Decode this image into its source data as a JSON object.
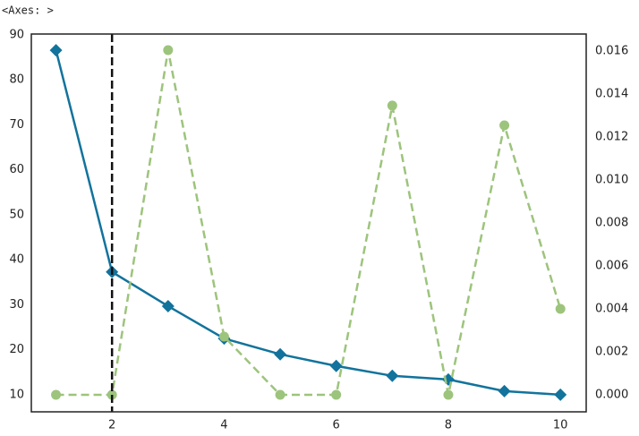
{
  "header": "<Axes: >",
  "chart_data": {
    "type": "line",
    "x": [
      1,
      2,
      3,
      4,
      5,
      6,
      7,
      8,
      9,
      10
    ],
    "series": [
      {
        "color": "#12739c",
        "marker": "diamond",
        "dashed": false,
        "values": [
          86.6,
          37.3,
          29.7,
          22.5,
          19.0,
          16.4,
          14.2,
          13.4,
          10.8,
          10.0
        ]
      },
      {
        "color": "#9dc47c",
        "marker": "circle",
        "dashed": true,
        "axis": "y2",
        "values": [
          0,
          0,
          0.01604,
          0.00271,
          0,
          0,
          0.01346,
          0,
          0.01254,
          0.004
        ]
      }
    ],
    "elbow_x": 2,
    "xlim": [
      0.56,
      10.46
    ],
    "xticks": [
      2,
      4,
      6,
      8,
      10
    ],
    "ylim": [
      6.2,
      90.2
    ],
    "yticks": [
      10,
      20,
      30,
      40,
      50,
      60,
      70,
      80,
      90
    ],
    "y2lim": [
      -0.00079,
      0.01679
    ],
    "y2ticks": [
      {
        "value": 0,
        "label": "0.000"
      },
      {
        "value": 0.002,
        "label": "0.002"
      },
      {
        "value": 0.004,
        "label": "0.004"
      },
      {
        "value": 0.006,
        "label": "0.006"
      },
      {
        "value": 0.008,
        "label": "0.008"
      },
      {
        "value": 0.01,
        "label": "0.010"
      },
      {
        "value": 0.012,
        "label": "0.012"
      },
      {
        "value": 0.014,
        "label": "0.014"
      },
      {
        "value": 0.016,
        "label": "0.016"
      }
    ],
    "grid": false
  }
}
